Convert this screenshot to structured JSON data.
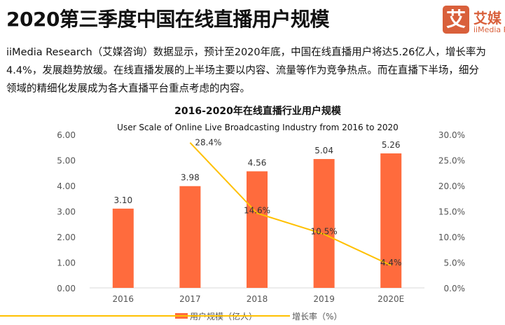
{
  "header": {
    "title": "2020第三季度中国在线直播用户规模"
  },
  "logo": {
    "mark": "艾",
    "name_cn": "艾媒",
    "name_en": "iiMedia R"
  },
  "paragraph": [
    "iiMedia Research（艾媒咨询）数据显示，预计至2020年底，中国在线直播用户将达5.26亿人，增长率为",
    "4.4%，发展趋势放缓。在线直播发展的上半场主要以内容、流量等作为竞争热点。而在直播下半场，细分",
    "领域的精细化发展成为各大直播平台重点考虑的内容。"
  ],
  "chart_data": {
    "type": "bar+line",
    "title": "2016-2020年在线直播行业用户规模",
    "subtitle": "User Scale of Online Live Broadcasting Industry from 2016 to 2020",
    "categories": [
      "2016",
      "2017",
      "2018",
      "2019",
      "2020E"
    ],
    "series": [
      {
        "name": "用户规模（亿人）",
        "type": "bar",
        "axis": "left",
        "values": [
          3.1,
          3.98,
          4.56,
          5.04,
          5.26
        ],
        "labels": [
          "3.10",
          "3.98",
          "4.56",
          "5.04",
          "5.26"
        ],
        "color": "#ff6b3d"
      },
      {
        "name": "增长率（%）",
        "type": "line",
        "axis": "right",
        "values": [
          null,
          28.4,
          14.6,
          10.5,
          4.4
        ],
        "labels": [
          "",
          "28.4%",
          "14.6%",
          "10.5%",
          "4.4%"
        ],
        "color": "#ffc000"
      }
    ],
    "ylim_left": [
      0,
      6
    ],
    "yticks_left": [
      "0.00",
      "1.00",
      "2.00",
      "3.00",
      "4.00",
      "5.00",
      "6.00"
    ],
    "ylim_right": [
      0,
      30
    ],
    "yticks_right": [
      "0.0%",
      "5.0%",
      "10.0%",
      "15.0%",
      "20.0%",
      "25.0%",
      "30.0%"
    ],
    "grid": false,
    "legend_position": "bottom"
  }
}
